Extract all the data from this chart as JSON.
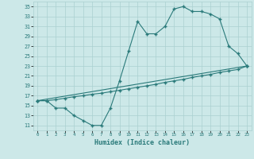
{
  "xlabel": "Humidex (Indice chaleur)",
  "bg_color": "#cce8e8",
  "line_color": "#2a7a7a",
  "grid_color": "#aad0d0",
  "xlim": [
    -0.5,
    23.5
  ],
  "ylim": [
    10,
    36
  ],
  "xticks": [
    0,
    1,
    2,
    3,
    4,
    5,
    6,
    7,
    8,
    9,
    10,
    11,
    12,
    13,
    14,
    15,
    16,
    17,
    18,
    19,
    20,
    21,
    22,
    23
  ],
  "yticks": [
    11,
    13,
    15,
    17,
    19,
    21,
    23,
    25,
    27,
    29,
    31,
    33,
    35
  ],
  "series1_x": [
    0,
    1,
    2,
    3,
    4,
    5,
    6,
    7,
    8,
    9,
    10,
    11,
    12,
    13,
    14,
    15,
    16,
    17,
    18,
    19,
    20,
    21,
    22,
    23
  ],
  "series1_y": [
    16,
    16,
    14.5,
    14.5,
    13,
    12,
    11,
    11,
    14.5,
    20,
    26,
    32,
    29.5,
    29.5,
    31,
    34.5,
    35,
    34,
    34,
    33.5,
    32.5,
    27,
    25.5,
    23
  ],
  "series2_x": [
    0,
    1,
    2,
    3,
    4,
    5,
    6,
    7,
    8,
    9,
    10,
    11,
    12,
    13,
    14,
    15,
    16,
    17,
    18,
    19,
    20,
    21,
    22,
    23
  ],
  "series2_y": [
    16,
    16,
    16.2,
    16.5,
    16.8,
    17.0,
    17.3,
    17.5,
    17.8,
    18.1,
    18.4,
    18.7,
    19.0,
    19.3,
    19.7,
    20.0,
    20.3,
    20.7,
    21.0,
    21.3,
    21.7,
    22.0,
    22.3,
    23.0
  ],
  "series3_x": [
    0,
    23
  ],
  "series3_y": [
    16,
    23
  ]
}
